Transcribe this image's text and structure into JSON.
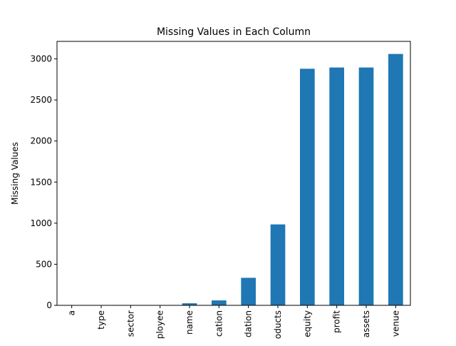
{
  "chart_data": {
    "type": "bar",
    "title": "Missing Values in Each Column",
    "xlabel": "",
    "ylabel": "Missing Values",
    "categories": [
      "a",
      "type",
      "sector",
      "ployee",
      "name",
      "cation",
      "dation",
      "oducts",
      "equity",
      "profit",
      "assets",
      "venue"
    ],
    "values": [
      0,
      0,
      0,
      0,
      25,
      60,
      335,
      985,
      2880,
      2895,
      2895,
      3060
    ],
    "ylim": [
      0,
      3213
    ],
    "yticks": [
      0,
      500,
      1000,
      1500,
      2000,
      2500,
      3000
    ],
    "grid": false,
    "legend": "none",
    "bar_color": "#1f77b4"
  }
}
